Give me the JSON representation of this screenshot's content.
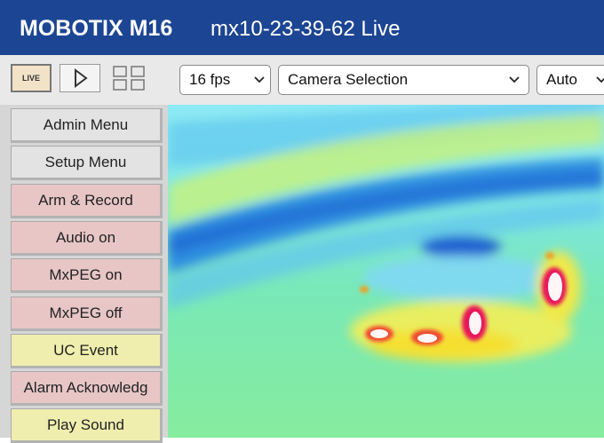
{
  "header": {
    "brand": "MOBOTIX M16",
    "title": "mx10-23-39-62 Live"
  },
  "toolbar": {
    "live_icon": "LIVE",
    "fps": "16 fps",
    "camera": "Camera Selection",
    "mode": "Auto"
  },
  "menu": [
    {
      "label": "Admin Menu",
      "style": "gray"
    },
    {
      "label": "Setup Menu",
      "style": "gray"
    },
    {
      "label": "Arm & Record",
      "style": "pink"
    },
    {
      "label": "Audio on",
      "style": "pink"
    },
    {
      "label": "MxPEG on",
      "style": "pink"
    },
    {
      "label": "MxPEG off",
      "style": "pink"
    },
    {
      "label": "UC Event",
      "style": "yellow"
    },
    {
      "label": "Alarm Acknowledg",
      "style": "pink"
    },
    {
      "label": "Play Sound",
      "style": "yellow"
    }
  ]
}
